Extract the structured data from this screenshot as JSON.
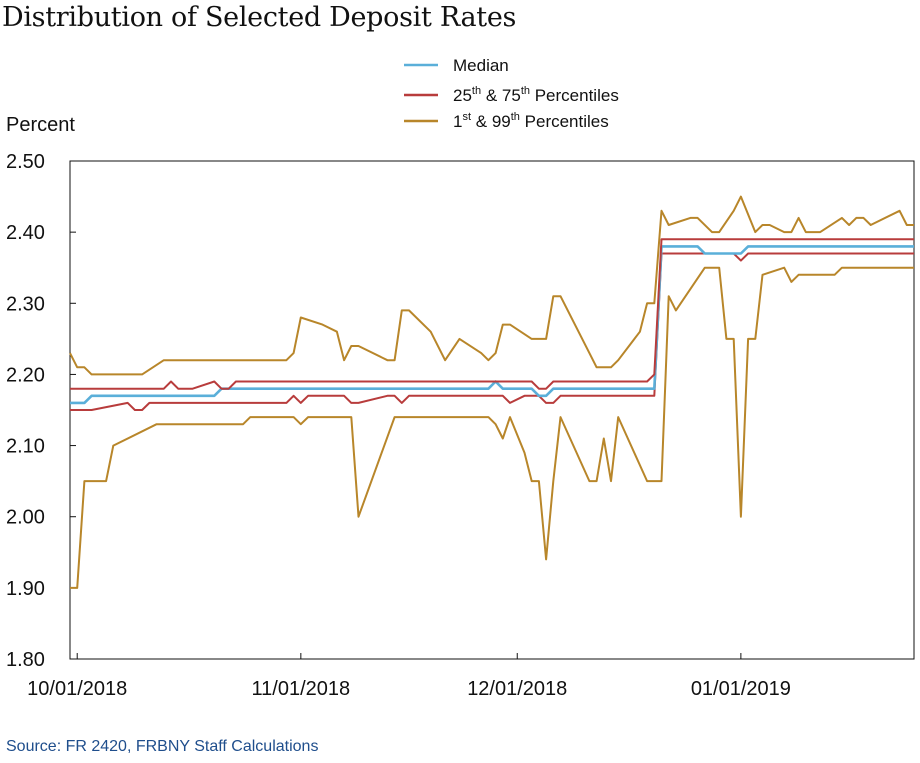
{
  "title": "Distribution of Selected Deposit Rates",
  "source": "Source: FR 2420, FRBNY Staff Calculations",
  "chart_data": {
    "type": "line",
    "title": "Distribution of Selected Deposit Rates",
    "ylabel": "Percent",
    "xlabel": "",
    "ylim": [
      1.8,
      2.5
    ],
    "xlim": [
      "2018-09-30",
      "2019-01-25"
    ],
    "y_ticks": [
      "1.80",
      "1.90",
      "2.00",
      "2.10",
      "2.20",
      "2.30",
      "2.40",
      "2.50"
    ],
    "x_ticks": [
      {
        "date": "2018-10-01",
        "label": "10/01/2018"
      },
      {
        "date": "2018-11-01",
        "label": "11/01/2018"
      },
      {
        "date": "2018-12-01",
        "label": "12/01/2018"
      },
      {
        "date": "2019-01-01",
        "label": "01/01/2019"
      }
    ],
    "grid": false,
    "legend_position": "top-right",
    "legend": [
      {
        "series": "median",
        "label": "Median",
        "color": "#5aafd9"
      },
      {
        "series": "p25_75",
        "label": "25",
        "sup1": "th",
        "mid": " & 75",
        "sup2": "th",
        "tail": " Percentiles",
        "color": "#b83c3c"
      },
      {
        "series": "p1_99",
        "label": "1",
        "sup1": "st",
        "mid": " & 99",
        "sup2": "th",
        "tail": " Percentiles",
        "color": "#b8862a"
      }
    ],
    "series": [
      {
        "id": "p1",
        "color": "#b8862a",
        "width": 2,
        "points": [
          [
            "2018-09-30",
            1.9
          ],
          [
            "2018-10-01",
            1.9
          ],
          [
            "2018-10-02",
            2.05
          ],
          [
            "2018-10-05",
            2.05
          ],
          [
            "2018-10-06",
            2.1
          ],
          [
            "2018-10-12",
            2.13
          ],
          [
            "2018-10-24",
            2.13
          ],
          [
            "2018-10-25",
            2.14
          ],
          [
            "2018-10-31",
            2.14
          ],
          [
            "2018-11-01",
            2.13
          ],
          [
            "2018-11-02",
            2.14
          ],
          [
            "2018-11-08",
            2.14
          ],
          [
            "2018-11-09",
            2.0
          ],
          [
            "2018-11-14",
            2.14
          ],
          [
            "2018-11-27",
            2.14
          ],
          [
            "2018-11-28",
            2.13
          ],
          [
            "2018-11-29",
            2.11
          ],
          [
            "2018-11-30",
            2.14
          ],
          [
            "2018-12-02",
            2.09
          ],
          [
            "2018-12-03",
            2.05
          ],
          [
            "2018-12-04",
            2.05
          ],
          [
            "2018-12-05",
            1.94
          ],
          [
            "2018-12-06",
            2.05
          ],
          [
            "2018-12-07",
            2.14
          ],
          [
            "2018-12-11",
            2.05
          ],
          [
            "2018-12-12",
            2.05
          ],
          [
            "2018-12-13",
            2.11
          ],
          [
            "2018-12-14",
            2.05
          ],
          [
            "2018-12-15",
            2.14
          ],
          [
            "2018-12-19",
            2.05
          ],
          [
            "2018-12-21",
            2.05
          ],
          [
            "2018-12-22",
            2.31
          ],
          [
            "2018-12-23",
            2.29
          ],
          [
            "2018-12-27",
            2.35
          ],
          [
            "2018-12-29",
            2.35
          ],
          [
            "2018-12-30",
            2.25
          ],
          [
            "2018-12-31",
            2.25
          ],
          [
            "2019-01-01",
            2.0
          ],
          [
            "2019-01-02",
            2.25
          ],
          [
            "2019-01-03",
            2.25
          ],
          [
            "2019-01-04",
            2.34
          ],
          [
            "2019-01-07",
            2.35
          ],
          [
            "2019-01-08",
            2.33
          ],
          [
            "2019-01-09",
            2.34
          ],
          [
            "2019-01-14",
            2.34
          ],
          [
            "2019-01-15",
            2.35
          ],
          [
            "2019-01-25",
            2.35
          ]
        ]
      },
      {
        "id": "p25",
        "color": "#b83c3c",
        "width": 2,
        "points": [
          [
            "2018-09-30",
            2.15
          ],
          [
            "2018-10-03",
            2.15
          ],
          [
            "2018-10-08",
            2.16
          ],
          [
            "2018-10-09",
            2.15
          ],
          [
            "2018-10-10",
            2.15
          ],
          [
            "2018-10-11",
            2.16
          ],
          [
            "2018-10-30",
            2.16
          ],
          [
            "2018-10-31",
            2.17
          ],
          [
            "2018-11-01",
            2.16
          ],
          [
            "2018-11-02",
            2.17
          ],
          [
            "2018-11-07",
            2.17
          ],
          [
            "2018-11-08",
            2.16
          ],
          [
            "2018-11-09",
            2.16
          ],
          [
            "2018-11-13",
            2.17
          ],
          [
            "2018-11-14",
            2.17
          ],
          [
            "2018-11-15",
            2.16
          ],
          [
            "2018-11-16",
            2.17
          ],
          [
            "2018-11-29",
            2.17
          ],
          [
            "2018-11-30",
            2.16
          ],
          [
            "2018-12-02",
            2.17
          ],
          [
            "2018-12-04",
            2.17
          ],
          [
            "2018-12-05",
            2.16
          ],
          [
            "2018-12-06",
            2.16
          ],
          [
            "2018-12-07",
            2.17
          ],
          [
            "2018-12-19",
            2.17
          ],
          [
            "2018-12-20",
            2.17
          ],
          [
            "2018-12-21",
            2.37
          ],
          [
            "2018-12-31",
            2.37
          ],
          [
            "2019-01-01",
            2.36
          ],
          [
            "2019-01-02",
            2.37
          ],
          [
            "2019-01-25",
            2.37
          ]
        ]
      },
      {
        "id": "median",
        "color": "#5aafd9",
        "width": 2.6,
        "points": [
          [
            "2018-09-30",
            2.16
          ],
          [
            "2018-10-02",
            2.16
          ],
          [
            "2018-10-03",
            2.17
          ],
          [
            "2018-10-20",
            2.17
          ],
          [
            "2018-10-21",
            2.18
          ],
          [
            "2018-11-27",
            2.18
          ],
          [
            "2018-11-28",
            2.19
          ],
          [
            "2018-11-29",
            2.18
          ],
          [
            "2018-12-03",
            2.18
          ],
          [
            "2018-12-04",
            2.17
          ],
          [
            "2018-12-05",
            2.17
          ],
          [
            "2018-12-06",
            2.18
          ],
          [
            "2018-12-20",
            2.18
          ],
          [
            "2018-12-21",
            2.38
          ],
          [
            "2018-12-26",
            2.38
          ],
          [
            "2018-12-27",
            2.37
          ],
          [
            "2019-01-01",
            2.37
          ],
          [
            "2019-01-02",
            2.38
          ],
          [
            "2019-01-25",
            2.38
          ]
        ]
      },
      {
        "id": "p75",
        "color": "#b83c3c",
        "width": 2,
        "points": [
          [
            "2018-09-30",
            2.18
          ],
          [
            "2018-10-13",
            2.18
          ],
          [
            "2018-10-14",
            2.19
          ],
          [
            "2018-10-15",
            2.18
          ],
          [
            "2018-10-17",
            2.18
          ],
          [
            "2018-10-20",
            2.19
          ],
          [
            "2018-10-21",
            2.18
          ],
          [
            "2018-10-22",
            2.18
          ],
          [
            "2018-10-23",
            2.19
          ],
          [
            "2018-12-03",
            2.19
          ],
          [
            "2018-12-04",
            2.18
          ],
          [
            "2018-12-05",
            2.18
          ],
          [
            "2018-12-06",
            2.19
          ],
          [
            "2018-12-19",
            2.19
          ],
          [
            "2018-12-20",
            2.2
          ],
          [
            "2018-12-21",
            2.39
          ],
          [
            "2019-01-25",
            2.39
          ]
        ]
      },
      {
        "id": "p99",
        "color": "#b8862a",
        "width": 2,
        "points": [
          [
            "2018-09-30",
            2.23
          ],
          [
            "2018-10-01",
            2.21
          ],
          [
            "2018-10-02",
            2.21
          ],
          [
            "2018-10-03",
            2.2
          ],
          [
            "2018-10-10",
            2.2
          ],
          [
            "2018-10-13",
            2.22
          ],
          [
            "2018-10-30",
            2.22
          ],
          [
            "2018-10-31",
            2.23
          ],
          [
            "2018-11-01",
            2.28
          ],
          [
            "2018-11-04",
            2.27
          ],
          [
            "2018-11-06",
            2.26
          ],
          [
            "2018-11-07",
            2.22
          ],
          [
            "2018-11-08",
            2.24
          ],
          [
            "2018-11-09",
            2.24
          ],
          [
            "2018-11-13",
            2.22
          ],
          [
            "2018-11-14",
            2.22
          ],
          [
            "2018-11-15",
            2.29
          ],
          [
            "2018-11-16",
            2.29
          ],
          [
            "2018-11-19",
            2.26
          ],
          [
            "2018-11-21",
            2.22
          ],
          [
            "2018-11-23",
            2.25
          ],
          [
            "2018-11-26",
            2.23
          ],
          [
            "2018-11-27",
            2.22
          ],
          [
            "2018-11-28",
            2.23
          ],
          [
            "2018-11-29",
            2.27
          ],
          [
            "2018-11-30",
            2.27
          ],
          [
            "2018-12-03",
            2.25
          ],
          [
            "2018-12-05",
            2.25
          ],
          [
            "2018-12-06",
            2.31
          ],
          [
            "2018-12-07",
            2.31
          ],
          [
            "2018-12-11",
            2.23
          ],
          [
            "2018-12-12",
            2.21
          ],
          [
            "2018-12-14",
            2.21
          ],
          [
            "2018-12-15",
            2.22
          ],
          [
            "2018-12-18",
            2.26
          ],
          [
            "2018-12-19",
            2.3
          ],
          [
            "2018-12-20",
            2.3
          ],
          [
            "2018-12-21",
            2.43
          ],
          [
            "2018-12-22",
            2.41
          ],
          [
            "2018-12-25",
            2.42
          ],
          [
            "2018-12-26",
            2.42
          ],
          [
            "2018-12-28",
            2.4
          ],
          [
            "2018-12-29",
            2.4
          ],
          [
            "2018-12-31",
            2.43
          ],
          [
            "2019-01-01",
            2.45
          ],
          [
            "2019-01-03",
            2.4
          ],
          [
            "2019-01-04",
            2.41
          ],
          [
            "2019-01-05",
            2.41
          ],
          [
            "2019-01-07",
            2.4
          ],
          [
            "2019-01-08",
            2.4
          ],
          [
            "2019-01-09",
            2.42
          ],
          [
            "2019-01-10",
            2.4
          ],
          [
            "2019-01-12",
            2.4
          ],
          [
            "2019-01-15",
            2.42
          ],
          [
            "2019-01-16",
            2.41
          ],
          [
            "2019-01-17",
            2.42
          ],
          [
            "2019-01-18",
            2.42
          ],
          [
            "2019-01-19",
            2.41
          ],
          [
            "2019-01-23",
            2.43
          ],
          [
            "2019-01-24",
            2.41
          ],
          [
            "2019-01-25",
            2.41
          ]
        ]
      }
    ]
  }
}
